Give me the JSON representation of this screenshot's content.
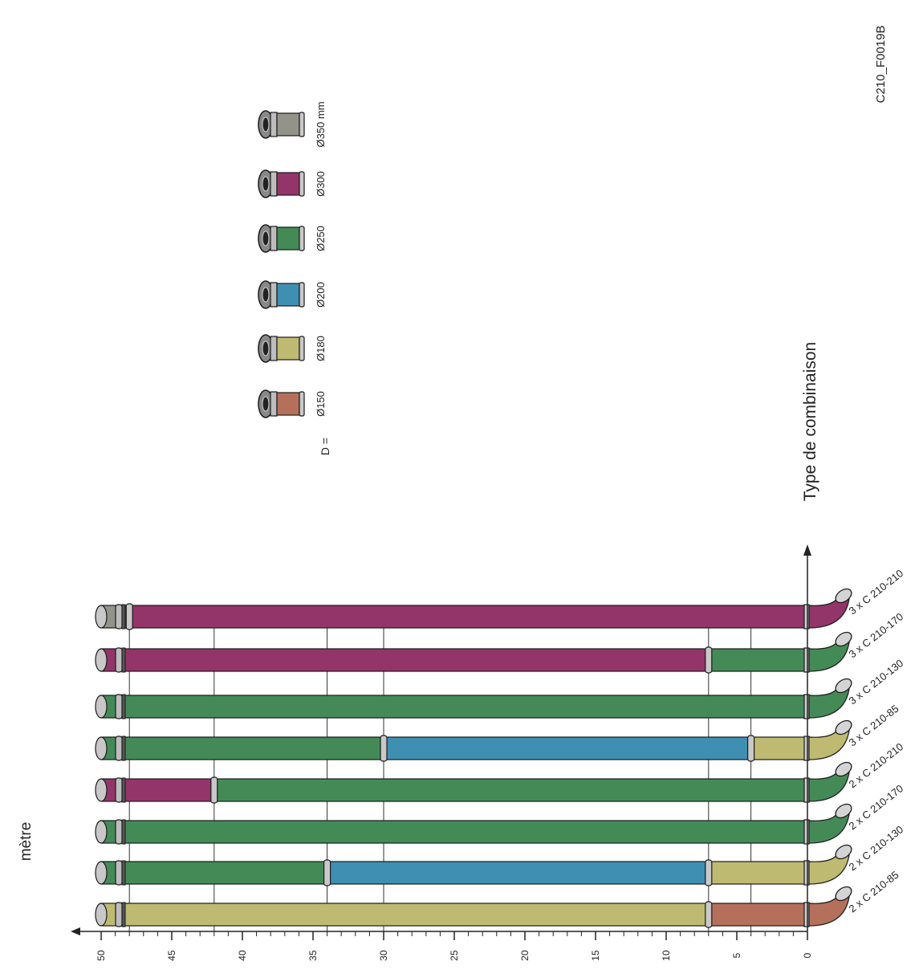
{
  "figure_code": "C210_F0019B",
  "axis": {
    "unit_label": "mètre",
    "category_title": "Type de combinaison",
    "ticks": [
      "0",
      "5",
      "10",
      "15",
      "20",
      "25",
      "30",
      "35",
      "40",
      "45",
      "50"
    ],
    "max": 50
  },
  "legend": {
    "prefix": "D =",
    "items": [
      {
        "label": "Ø150",
        "color": "#b5705c"
      },
      {
        "label": "Ø180",
        "color": "#bfba72"
      },
      {
        "label": "Ø200",
        "color": "#3f8fb2"
      },
      {
        "label": "Ø250",
        "color": "#448a57"
      },
      {
        "label": "Ø300",
        "color": "#933569"
      },
      {
        "label": "Ø350 mm",
        "color": "#94938a"
      }
    ]
  },
  "chart_data": {
    "type": "bar",
    "orientation": "horizontal-stacked",
    "categories": [
      "2 x C 210-85",
      "2 x C 210-130",
      "2 x C 210-170",
      "2 x C 210-210",
      "3 x C 210-85",
      "3 x C 210-130",
      "3 x C 210-170",
      "3 x C 210-210"
    ],
    "xlim": [
      0,
      50
    ],
    "segments": [
      [
        {
          "d": "Ø150",
          "from": 0,
          "to": 7
        },
        {
          "d": "Ø180",
          "from": 7,
          "to": 50
        }
      ],
      [
        {
          "d": "Ø180",
          "from": 0,
          "to": 7
        },
        {
          "d": "Ø200",
          "from": 7,
          "to": 34
        },
        {
          "d": "Ø250",
          "from": 34,
          "to": 50
        }
      ],
      [
        {
          "d": "Ø250",
          "from": 0,
          "to": 50
        }
      ],
      [
        {
          "d": "Ø250",
          "from": 0,
          "to": 42
        },
        {
          "d": "Ø300",
          "from": 42,
          "to": 50
        }
      ],
      [
        {
          "d": "Ø180",
          "from": 0,
          "to": 4
        },
        {
          "d": "Ø200",
          "from": 4,
          "to": 30
        },
        {
          "d": "Ø250",
          "from": 30,
          "to": 50
        }
      ],
      [
        {
          "d": "Ø250",
          "from": 0,
          "to": 50
        }
      ],
      [
        {
          "d": "Ø250",
          "from": 0,
          "to": 7
        },
        {
          "d": "Ø300",
          "from": 7,
          "to": 50
        }
      ],
      [
        {
          "d": "Ø300",
          "from": 0,
          "to": 48
        },
        {
          "d": "Ø350 mm",
          "from": 48,
          "to": 50
        }
      ]
    ],
    "ref_lines": [
      48,
      42,
      34,
      30,
      7,
      4
    ]
  }
}
